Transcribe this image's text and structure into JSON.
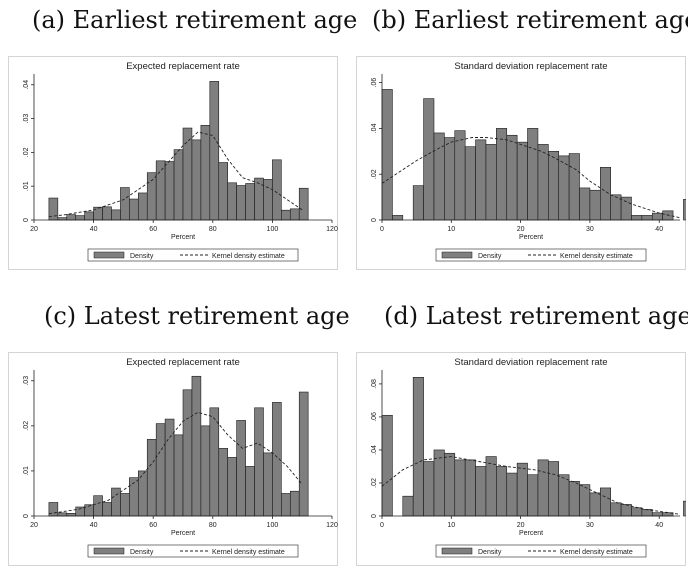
{
  "captions": [
    "(a) Earliest retirement age",
    "(b) Earliest retirement age",
    "(c) Latest retirement age",
    "(d) Latest retirement age"
  ],
  "chart_data": [
    {
      "type": "bar",
      "title": "Expected replacement rate",
      "xlabel": "Percent",
      "ylabel": "",
      "xlim": [
        20,
        120
      ],
      "ylim": [
        0,
        0.042
      ],
      "xticks": [
        20,
        40,
        60,
        80,
        100,
        120
      ],
      "yticks": [
        0,
        0.01,
        0.02,
        0.03,
        0.04
      ],
      "ytick_labels": [
        "0",
        ".01",
        ".02",
        ".03",
        ".04"
      ],
      "bin_start": 25,
      "bin_width": 3,
      "values": [
        0.0065,
        0.0007,
        0.0016,
        0.0013,
        0.0024,
        0.0038,
        0.0039,
        0.003,
        0.0096,
        0.0062,
        0.008,
        0.014,
        0.0175,
        0.0173,
        0.0208,
        0.0272,
        0.0237,
        0.028,
        0.041,
        0.017,
        0.011,
        0.0102,
        0.0108,
        0.0124,
        0.012,
        0.0178,
        0.0029,
        0.0033,
        0.0094
      ],
      "kde": {
        "x": [
          25,
          30,
          40,
          50,
          60,
          65,
          70,
          75,
          80,
          85,
          90,
          95,
          100,
          105,
          110
        ],
        "y": [
          0.001,
          0.0015,
          0.003,
          0.006,
          0.012,
          0.017,
          0.022,
          0.026,
          0.025,
          0.018,
          0.0125,
          0.011,
          0.009,
          0.006,
          0.003
        ]
      },
      "legend": [
        "Density",
        "Kernel density estimate"
      ],
      "legend_position": "bottom",
      "bar_color": "#7f7f7f"
    },
    {
      "type": "bar",
      "title": "Standard deviation replacement rate",
      "xlabel": "Percent",
      "ylabel": "",
      "xlim": [
        0,
        43
      ],
      "ylim": [
        0,
        0.062
      ],
      "xticks": [
        0,
        10,
        20,
        30,
        40
      ],
      "yticks": [
        0,
        0.02,
        0.04,
        0.06
      ],
      "ytick_labels": [
        "0",
        ".02",
        ".04",
        ".06"
      ],
      "bin_start": 0,
      "bin_width": 1.5,
      "values": [
        0.057,
        0.002,
        0.0,
        0.015,
        0.053,
        0.038,
        0.036,
        0.039,
        0.032,
        0.035,
        0.033,
        0.04,
        0.037,
        0.034,
        0.04,
        0.033,
        0.03,
        0.028,
        0.029,
        0.014,
        0.013,
        0.023,
        0.011,
        0.01,
        0.002,
        0.002,
        0.003,
        0.004,
        0.0,
        0.009
      ],
      "kde": {
        "x": [
          0,
          2,
          5,
          8,
          10,
          13,
          15,
          18,
          20,
          23,
          25,
          28,
          30,
          33,
          36,
          40,
          43
        ],
        "y": [
          0.016,
          0.02,
          0.026,
          0.031,
          0.034,
          0.036,
          0.036,
          0.035,
          0.033,
          0.03,
          0.027,
          0.022,
          0.017,
          0.011,
          0.007,
          0.003,
          0.001
        ]
      },
      "legend": [
        "Density",
        "Kernel density estimate"
      ],
      "legend_position": "bottom",
      "bar_color": "#7f7f7f"
    },
    {
      "type": "bar",
      "title": "Expected replacement rate",
      "xlabel": "Percent",
      "ylabel": "",
      "xlim": [
        20,
        120
      ],
      "ylim": [
        0,
        0.0315
      ],
      "xticks": [
        20,
        40,
        60,
        80,
        100,
        120
      ],
      "yticks": [
        0,
        0.01,
        0.02,
        0.03
      ],
      "ytick_labels": [
        "0",
        ".01",
        ".02",
        ".03"
      ],
      "bin_start": 25,
      "bin_width": 3,
      "values": [
        0.003,
        0.0007,
        0.0006,
        0.002,
        0.0025,
        0.0045,
        0.003,
        0.0062,
        0.005,
        0.0085,
        0.01,
        0.017,
        0.0205,
        0.0215,
        0.018,
        0.028,
        0.031,
        0.02,
        0.024,
        0.015,
        0.013,
        0.0212,
        0.011,
        0.024,
        0.014,
        0.0252,
        0.005,
        0.0055,
        0.0275
      ],
      "kde": {
        "x": [
          25,
          35,
          45,
          55,
          60,
          65,
          70,
          75,
          80,
          85,
          90,
          95,
          100,
          105,
          110
        ],
        "y": [
          0.0005,
          0.0015,
          0.0035,
          0.008,
          0.012,
          0.017,
          0.021,
          0.023,
          0.022,
          0.018,
          0.015,
          0.0162,
          0.014,
          0.011,
          0.007
        ]
      },
      "legend": [
        "Density",
        "Kernel density estimate"
      ],
      "legend_position": "bottom",
      "bar_color": "#7f7f7f"
    },
    {
      "type": "bar",
      "title": "Standard deviation replacement rate",
      "xlabel": "Percent",
      "ylabel": "",
      "xlim": [
        0,
        43
      ],
      "ylim": [
        0,
        0.086
      ],
      "xticks": [
        0,
        10,
        20,
        30,
        40
      ],
      "yticks": [
        0,
        0.02,
        0.04,
        0.06,
        0.08
      ],
      "ytick_labels": [
        "0",
        ".02",
        ".04",
        ".06",
        ".08"
      ],
      "bin_start": 0,
      "bin_width": 1.5,
      "values": [
        0.061,
        0.0,
        0.012,
        0.084,
        0.033,
        0.04,
        0.038,
        0.034,
        0.034,
        0.03,
        0.036,
        0.03,
        0.026,
        0.032,
        0.025,
        0.034,
        0.033,
        0.025,
        0.021,
        0.019,
        0.014,
        0.017,
        0.008,
        0.007,
        0.005,
        0.004,
        0.002,
        0.002,
        0.0,
        0.009
      ],
      "kde": {
        "x": [
          0,
          3,
          6,
          10,
          14,
          18,
          22,
          25,
          28,
          31,
          34,
          38,
          43
        ],
        "y": [
          0.018,
          0.028,
          0.034,
          0.036,
          0.033,
          0.03,
          0.028,
          0.025,
          0.02,
          0.014,
          0.008,
          0.004,
          0.001
        ]
      },
      "legend": [
        "Density",
        "Kernel density estimate"
      ],
      "legend_position": "bottom",
      "bar_color": "#7f7f7f"
    }
  ]
}
